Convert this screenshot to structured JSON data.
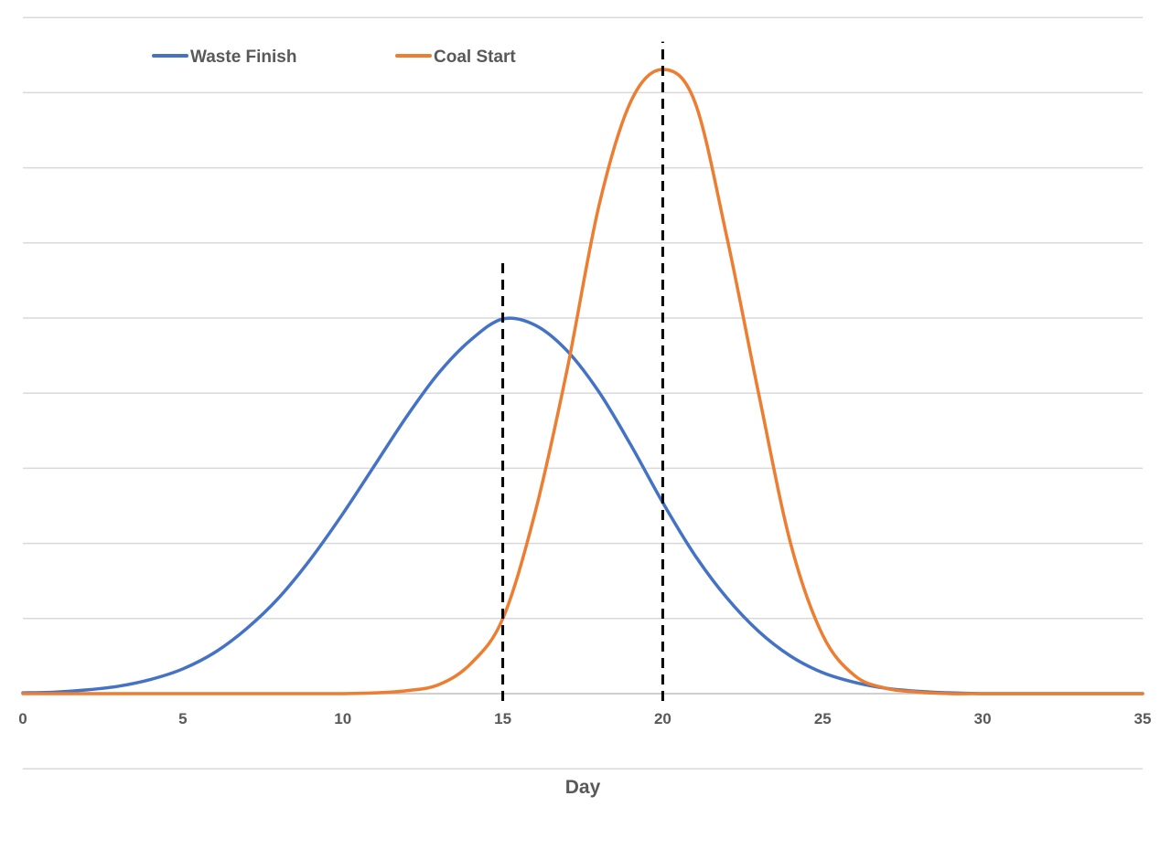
{
  "chart_data": {
    "type": "line",
    "title": "",
    "xlabel": "Day",
    "ylabel": "",
    "xlim": [
      0,
      35
    ],
    "ylim": [
      0,
      9
    ],
    "x_ticks": [
      "0",
      "5",
      "10",
      "15",
      "20",
      "25",
      "30",
      "35"
    ],
    "grid": true,
    "legend_position": "top-left",
    "colors": {
      "Waste Finish": "#4472c4",
      "Coal Start": "#ed7d31",
      "reference": "#000000"
    },
    "series": [
      {
        "name": "Waste Finish",
        "x": [
          0,
          1,
          2,
          3,
          4,
          5,
          6,
          7,
          8,
          9,
          10,
          11,
          12,
          13,
          14,
          15,
          16,
          17,
          18,
          19,
          20,
          21,
          22,
          23,
          24,
          25,
          26,
          27,
          28,
          29,
          30,
          31,
          32,
          33,
          34,
          35
        ],
        "values": [
          0.01,
          0.02,
          0.05,
          0.1,
          0.19,
          0.33,
          0.55,
          0.87,
          1.28,
          1.8,
          2.4,
          3.05,
          3.7,
          4.28,
          4.72,
          5.0,
          4.92,
          4.58,
          4.03,
          3.32,
          2.55,
          1.85,
          1.28,
          0.83,
          0.5,
          0.28,
          0.15,
          0.07,
          0.03,
          0.01,
          0.0,
          0.0,
          0.0,
          0.0,
          0.0,
          0.0
        ]
      },
      {
        "name": "Coal Start",
        "x": [
          0,
          1,
          2,
          3,
          4,
          5,
          6,
          7,
          8,
          9,
          10,
          11,
          12,
          13,
          14,
          15,
          16,
          17,
          18,
          19,
          20,
          21,
          22,
          23,
          24,
          25,
          26,
          27,
          28,
          29,
          30,
          31,
          32,
          33,
          34,
          35
        ],
        "values": [
          0,
          0,
          0,
          0,
          0,
          0,
          0,
          0,
          0,
          0,
          0,
          0.01,
          0.04,
          0.12,
          0.4,
          1.0,
          2.4,
          4.3,
          6.5,
          7.9,
          8.33,
          7.9,
          6.1,
          4.0,
          2.0,
          0.78,
          0.24,
          0.07,
          0.02,
          0.0,
          0.0,
          0.0,
          0.0,
          0.0,
          0.0,
          0.0
        ]
      }
    ],
    "reference_lines": [
      {
        "x": 15,
        "y_top": 5.8,
        "style": "dashed"
      },
      {
        "x": 20,
        "y_top": 8.7,
        "style": "dashed"
      }
    ]
  }
}
